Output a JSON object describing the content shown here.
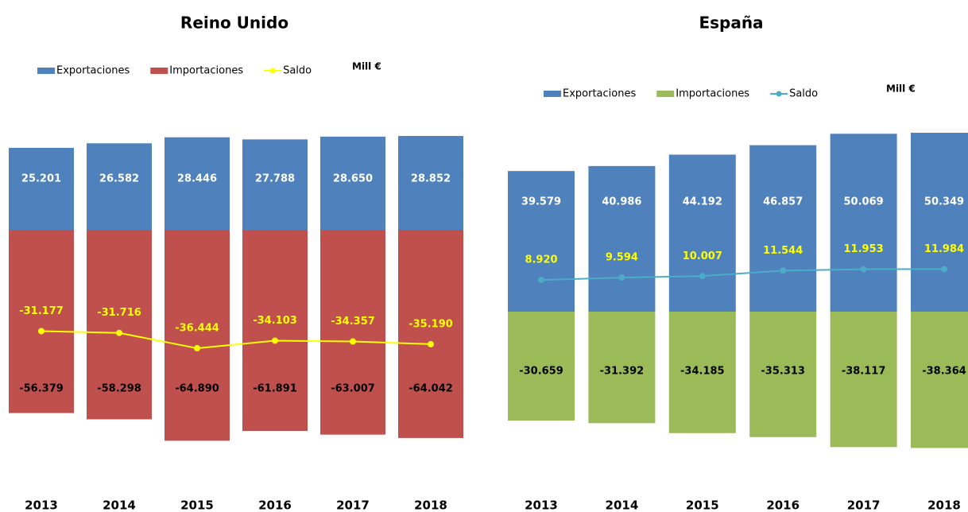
{
  "chart_data": [
    {
      "type": "bar",
      "title": "Reino Unido",
      "unit": "Mill €",
      "categories": [
        "2013",
        "2014",
        "2015",
        "2016",
        "2017",
        "2018"
      ],
      "series": [
        {
          "name": "Exportaciones",
          "color": "#4f81bd",
          "label_color": "#ffffff",
          "values": [
            25201,
            26582,
            28446,
            27788,
            28650,
            28852
          ],
          "value_labels": [
            "25.201",
            "26.582",
            "28.446",
            "27.788",
            "28.650",
            "28.852"
          ]
        },
        {
          "name": "Importaciones",
          "color": "#c0504d",
          "label_color": "#000000",
          "values": [
            -56379,
            -58298,
            -64890,
            -61891,
            -63007,
            -64042
          ],
          "value_labels": [
            "-56.379",
            "-58.298",
            "-64.890",
            "-61.891",
            "-63.007",
            "-64.042"
          ]
        },
        {
          "name": "Saldo",
          "type": "line",
          "color": "#ffff00",
          "label_color": "#ffff00",
          "values": [
            -31177,
            -31716,
            -36444,
            -34103,
            -34357,
            -35190
          ],
          "value_labels": [
            "-31.177",
            "-31.716",
            "-36.444",
            "-34.103",
            "-34.357",
            "-35.190"
          ]
        }
      ]
    },
    {
      "type": "bar",
      "title": "España",
      "unit": "Mill €",
      "categories": [
        "2013",
        "2014",
        "2015",
        "2016",
        "2017",
        "2018"
      ],
      "series": [
        {
          "name": "Exportaciones",
          "color": "#4f81bd",
          "label_color": "#ffffff",
          "values": [
            39579,
            40986,
            44192,
            46857,
            50069,
            50349
          ],
          "value_labels": [
            "39.579",
            "40.986",
            "44.192",
            "46.857",
            "50.069",
            "50.349"
          ]
        },
        {
          "name": "Importaciones",
          "color": "#9bbb59",
          "label_color": "#000000",
          "values": [
            -30659,
            -31392,
            -34185,
            -35313,
            -38117,
            -38364
          ],
          "value_labels": [
            "-30.659",
            "-31.392",
            "-34.185",
            "-35.313",
            "-38.117",
            "-38.364"
          ]
        },
        {
          "name": "Saldo",
          "type": "line",
          "color": "#4bacc6",
          "label_color": "#ffff00",
          "values": [
            8920,
            9594,
            10007,
            11544,
            11953,
            11984
          ],
          "value_labels": [
            "8.920",
            "9.594",
            "10.007",
            "11.544",
            "11.953",
            "11.984"
          ]
        }
      ]
    }
  ]
}
